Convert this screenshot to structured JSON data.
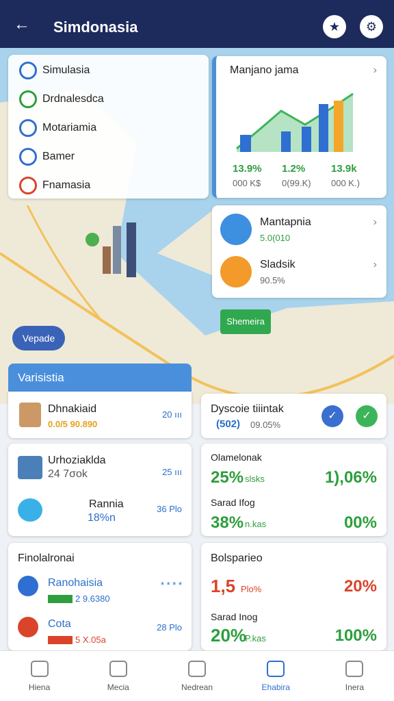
{
  "header": {
    "title": "Simdonasia"
  },
  "side_menu": {
    "items": [
      "Simulasia",
      "Drdnalesdca",
      "Motariamia",
      "Bamer",
      "Fnamasia"
    ]
  },
  "trend_card": {
    "title": "Manjano jama",
    "stats": [
      {
        "value": "13.9%",
        "sub": "000 K$"
      },
      {
        "value": "1.2%",
        "sub": "0(99.K)"
      },
      {
        "value": "13.9k",
        "sub": "000 K.)"
      }
    ]
  },
  "map_cards": [
    {
      "title": "Mantapnia",
      "value": "5.0(010"
    },
    {
      "title": "Sladsik",
      "value": "90.5%"
    }
  ],
  "map_button": "Shemeira",
  "view_button": "Vepade",
  "section": {
    "title": "Varisistia"
  },
  "card_a": {
    "title": "Dhnakiaid",
    "value": "0.0/5 90.890",
    "side": "20 ııı"
  },
  "card_b": {
    "title": "Dyscoie tiiintak",
    "value": "(502)",
    "sub": "09.05%"
  },
  "card_c": {
    "rows": [
      {
        "title": "Urhoziaklda",
        "value": "24 7σok",
        "side": "25 ııı"
      },
      {
        "title": "Rannia",
        "value": "18%n",
        "side": "36 Plo"
      }
    ]
  },
  "card_d": {
    "rows": [
      {
        "title": "Olamelonak",
        "value": "25%",
        "unit": "slsks",
        "side": "1),06%"
      },
      {
        "title": "Sarad Ifog",
        "value": "38%",
        "unit": "n.kas",
        "side": "00%"
      }
    ]
  },
  "card_e": {
    "title": "Finolalronai",
    "rows": [
      {
        "title": "Ranohaisia",
        "value": "2 9.6380",
        "side": "* * * *"
      },
      {
        "title": "Cota",
        "value": "5 X.05a",
        "side": "28 Plo"
      }
    ]
  },
  "card_f": {
    "title": "Bolsparieo",
    "rows": [
      {
        "value": "1,5",
        "unit": "Plo%",
        "side": "20%"
      },
      {
        "title": "Sarad Inog",
        "value": "20%",
        "unit": "P.kas",
        "side": "100%"
      }
    ]
  },
  "nav": [
    "Hiena",
    "Mecia",
    "Nedrean",
    "Ehabira",
    "Inera"
  ]
}
